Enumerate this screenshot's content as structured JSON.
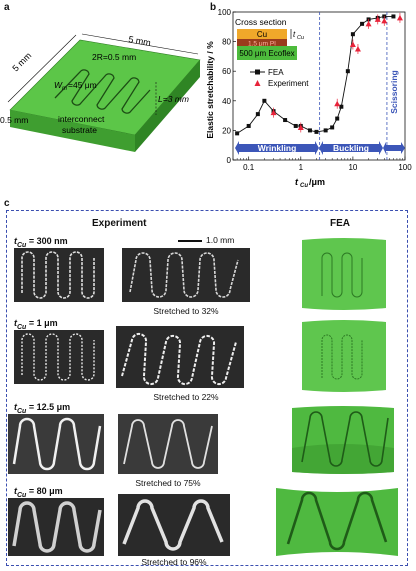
{
  "panel_a": {
    "label": "a",
    "dims": {
      "top": "5 mm",
      "side": "5 mm",
      "thickness": "0.5 mm"
    },
    "annotations": {
      "radius": "2R=0.5 mm",
      "width": "W",
      "width_sub": "m",
      "width_val": "=45 μm",
      "length": "L=3 mm",
      "interconnect": "interconnect",
      "substrate": "substrate"
    }
  },
  "panel_b": {
    "label": "b",
    "inset": {
      "title": "Cross section",
      "cu": "Cu",
      "pi": "1.5 μm PI",
      "ecoflex": "500 μm Ecoflex",
      "tcu": "t",
      "tcu_sub": "Cu"
    },
    "legend": {
      "fea": "FEA",
      "experiment": "Experiment"
    },
    "regions": {
      "wrinkling": "Wrinkling",
      "buckling": "Buckling",
      "scissoring": "Scissoring"
    },
    "xlabel_t": "t",
    "xlabel_sub": "Cu",
    "xlabel_unit": " /μm",
    "ylabel": "Elastic stretchability / %",
    "xticks": [
      "0.1",
      "1",
      "10",
      "100"
    ],
    "yticks": [
      "0",
      "20",
      "40",
      "60",
      "80",
      "100"
    ]
  },
  "chart_data": {
    "type": "line",
    "xscale": "log",
    "xlim": [
      0.05,
      100
    ],
    "ylim": [
      0,
      100
    ],
    "xlabel": "tCu /μm",
    "ylabel": "Elastic stretchability / %",
    "series": [
      {
        "name": "FEA",
        "x": [
          0.06,
          0.1,
          0.15,
          0.2,
          0.3,
          0.5,
          0.8,
          1,
          1.5,
          2,
          3,
          4,
          5,
          6,
          8,
          10,
          15,
          20,
          30,
          40,
          60
        ],
        "y": [
          18,
          23,
          31,
          40,
          33,
          27,
          23,
          23,
          20,
          19,
          20,
          22,
          28,
          36,
          60,
          85,
          92,
          95,
          96,
          97,
          97
        ]
      },
      {
        "name": "Experiment",
        "x": [
          0.3,
          1,
          5,
          10,
          12.5,
          20,
          30,
          40,
          80
        ],
        "y": [
          32,
          22,
          38,
          78,
          75,
          92,
          95,
          94,
          96
        ]
      }
    ]
  },
  "panel_c": {
    "label": "c",
    "experiment_title": "Experiment",
    "fea_title": "FEA",
    "scalebar": "1.0 mm",
    "rows": [
      {
        "t": "t",
        "sub": "Cu",
        "value": " = 300 nm",
        "caption": "Stretched to 32%"
      },
      {
        "t": "t",
        "sub": "Cu",
        "value": " = 1 μm",
        "caption": "Stretched to 22%"
      },
      {
        "t": "t",
        "sub": "Cu",
        "value": " = 12.5 μm",
        "caption": "Stretched to 75%"
      },
      {
        "t": "t",
        "sub": "Cu",
        "value": " = 80 μm",
        "caption": "Stretched to 96%"
      }
    ]
  },
  "colors": {
    "green": "#4dbb3c",
    "blue_arrow": "#3c56b8",
    "red": "#e8233a",
    "cu": "#f0a82a",
    "pi": "#9a3b1c"
  }
}
